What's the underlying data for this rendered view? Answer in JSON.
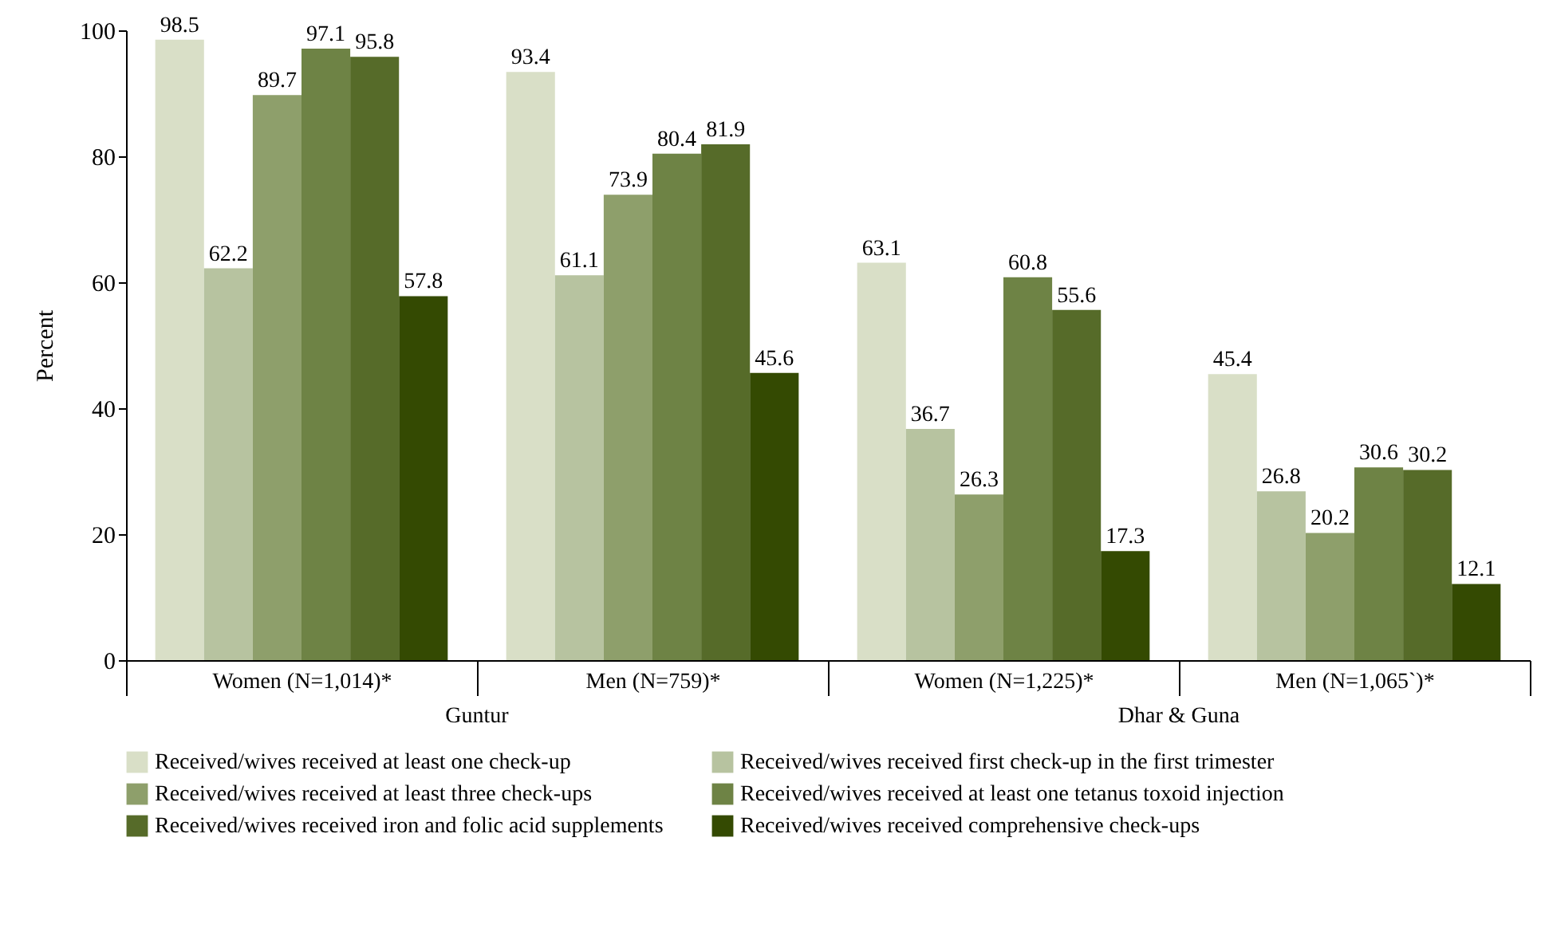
{
  "chart_data": {
    "type": "bar",
    "ylabel": "Percent",
    "categories": [
      "Women (N=1,014)*",
      "Men (N=759)*",
      "Women (N=1,225)*",
      "Men (N=1,065`)*"
    ],
    "series": [
      {
        "name": "Received/wives received at least one check-up",
        "color": "#d9dfc7",
        "values": [
          98.5,
          93.4,
          63.1,
          45.4
        ]
      },
      {
        "name": "Received/wives received first check-up in the first trimester",
        "color": "#b7c3a0",
        "values": [
          62.2,
          61.1,
          36.7,
          26.8
        ]
      },
      {
        "name": "Received/wives received at least three check-ups",
        "color": "#8e9f6b",
        "values": [
          89.7,
          73.9,
          26.3,
          20.2
        ]
      },
      {
        "name": "Received/wives received at least one tetanus toxoid injection",
        "color": "#6e8345",
        "values": [
          97.1,
          80.4,
          60.8,
          30.6
        ]
      },
      {
        "name": "Received/wives received iron and folic acid supplements",
        "color": "#566b29",
        "values": [
          95.8,
          81.9,
          55.6,
          30.2
        ]
      },
      {
        "name": "Received/wives received comprehensive check-ups",
        "color": "#344a02",
        "values": [
          57.8,
          45.6,
          17.3,
          12.1
        ]
      }
    ],
    "annotations": [
      "Guntur",
      "Dhar & Guna"
    ],
    "ylim": [
      0,
      100
    ],
    "yticks": [
      0,
      20,
      40,
      60,
      80,
      100
    ],
    "data_labels": true,
    "legend": "bottom",
    "grid": false
  }
}
